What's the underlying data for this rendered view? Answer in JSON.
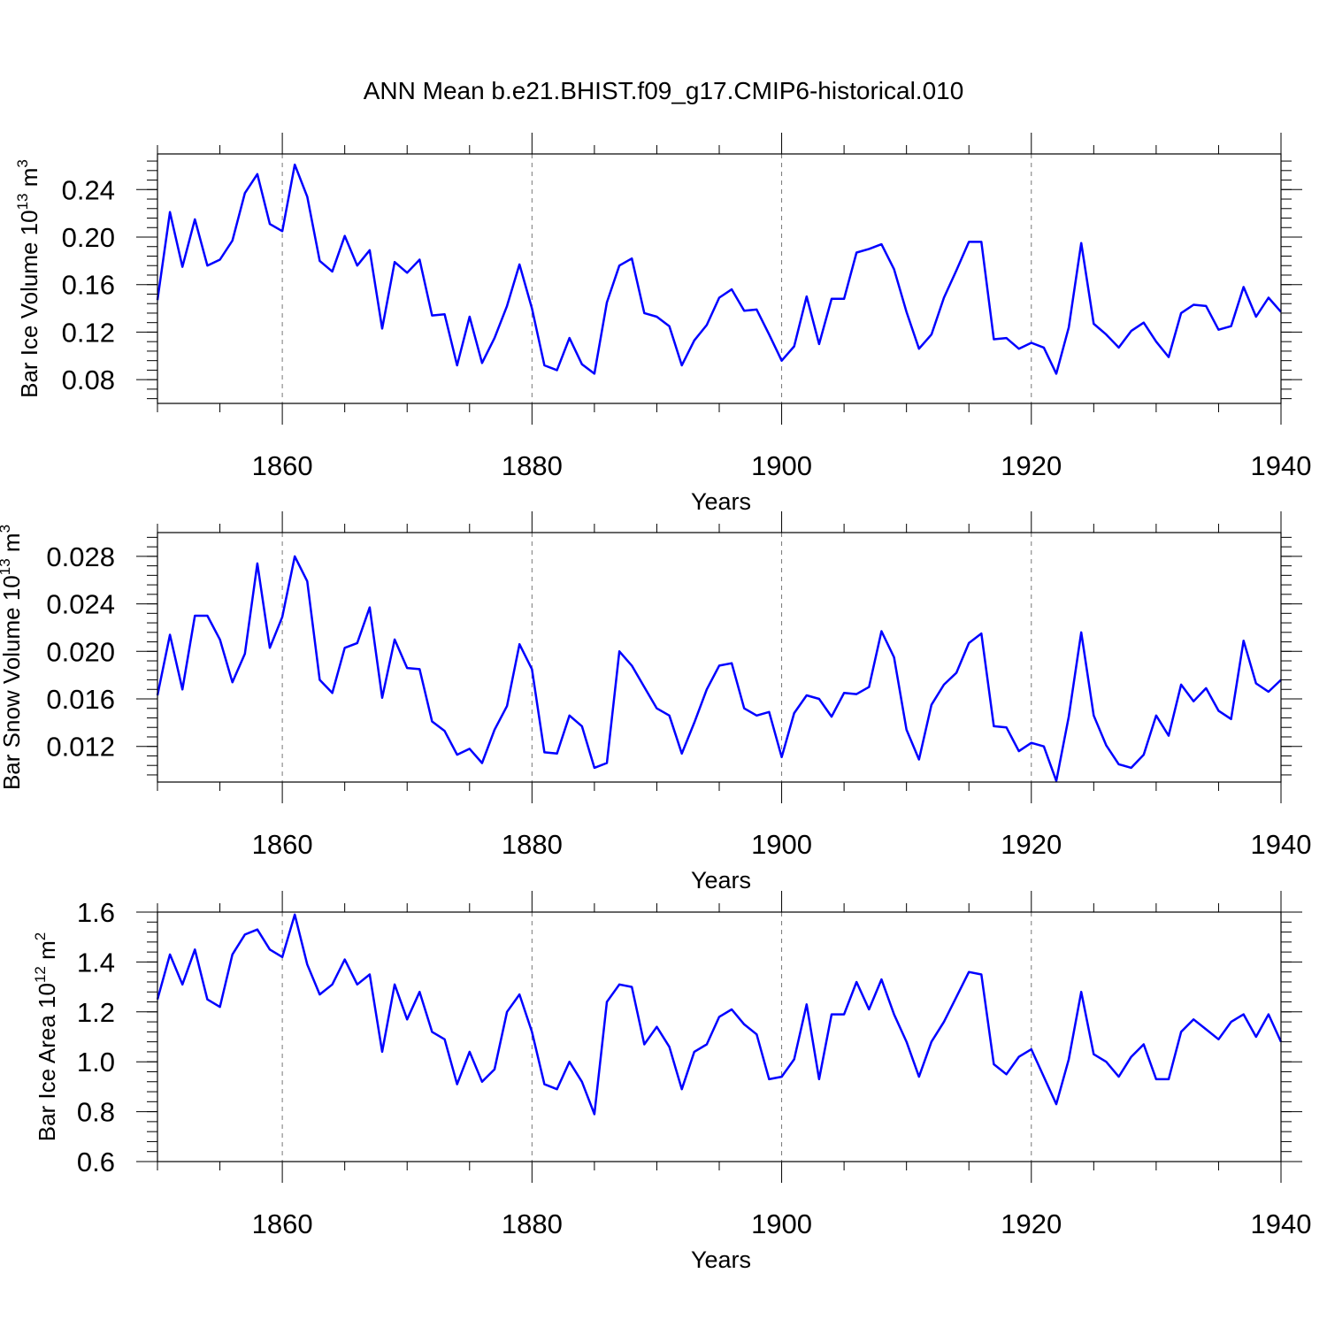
{
  "chart_data": {
    "title": "ANN Mean b.e21.BHIST.f09_g17.CMIP6-historical.010",
    "type": "line",
    "line_color": "#0000ff",
    "x_start": 1850,
    "panels": [
      {
        "id": "ice-volume",
        "ylabel": {
          "base": "Bar Ice Volume 10",
          "exp": "13",
          "unit": " m",
          "unit_exp": "3"
        },
        "xlabel": "Years",
        "xlim": [
          1850,
          1940
        ],
        "x_ticks": [
          "1860",
          "1880",
          "1900",
          "1920",
          "1940"
        ],
        "ylim": [
          0.06,
          0.27
        ],
        "y_ticks": [
          "0.08",
          "0.12",
          "0.16",
          "0.20",
          "0.24"
        ],
        "y_tick_values": [
          0.08,
          0.12,
          0.16,
          0.2,
          0.24
        ],
        "values": [
          0.147,
          0.221,
          0.175,
          0.215,
          0.176,
          0.181,
          0.197,
          0.237,
          0.253,
          0.211,
          0.205,
          0.261,
          0.234,
          0.18,
          0.171,
          0.201,
          0.176,
          0.189,
          0.123,
          0.179,
          0.17,
          0.181,
          0.134,
          0.135,
          0.092,
          0.133,
          0.094,
          0.115,
          0.142,
          0.177,
          0.14,
          0.092,
          0.088,
          0.115,
          0.093,
          0.085,
          0.145,
          0.176,
          0.182,
          0.136,
          0.133,
          0.125,
          0.092,
          0.113,
          0.126,
          0.149,
          0.156,
          0.138,
          0.139,
          0.118,
          0.096,
          0.108,
          0.15,
          0.11,
          0.148,
          0.148,
          0.187,
          0.19,
          0.194,
          0.173,
          0.137,
          0.106,
          0.118,
          0.149,
          0.172,
          0.196,
          0.196,
          0.114,
          0.115,
          0.106,
          0.111,
          0.107,
          0.085,
          0.124,
          0.195,
          0.127,
          0.118,
          0.107,
          0.121,
          0.128,
          0.112,
          0.099,
          0.136,
          0.143,
          0.142,
          0.122,
          0.125,
          0.158,
          0.133,
          0.149,
          0.137
        ]
      },
      {
        "id": "snow-volume",
        "ylabel": {
          "base": "Bar Snow Volume 10",
          "exp": "13",
          "unit": " m",
          "unit_exp": "3"
        },
        "xlabel": "Years",
        "xlim": [
          1850,
          1940
        ],
        "x_ticks": [
          "1860",
          "1880",
          "1900",
          "1920",
          "1940"
        ],
        "ylim": [
          0.009,
          0.03
        ],
        "y_ticks": [
          "0.012",
          "0.016",
          "0.020",
          "0.024",
          "0.028"
        ],
        "y_tick_values": [
          0.012,
          0.016,
          0.02,
          0.024,
          0.028
        ],
        "values": [
          0.0163,
          0.0214,
          0.0168,
          0.023,
          0.023,
          0.021,
          0.0174,
          0.0198,
          0.0274,
          0.0203,
          0.0229,
          0.028,
          0.0259,
          0.0176,
          0.0165,
          0.0203,
          0.0207,
          0.0237,
          0.0161,
          0.021,
          0.0186,
          0.0185,
          0.0141,
          0.0133,
          0.0113,
          0.0118,
          0.0106,
          0.0134,
          0.0154,
          0.0206,
          0.0185,
          0.0115,
          0.0114,
          0.0146,
          0.0137,
          0.0102,
          0.0106,
          0.02,
          0.0188,
          0.017,
          0.0152,
          0.0146,
          0.0114,
          0.014,
          0.0168,
          0.0188,
          0.019,
          0.0152,
          0.0146,
          0.0149,
          0.0111,
          0.0148,
          0.0163,
          0.016,
          0.0145,
          0.0165,
          0.0164,
          0.017,
          0.0217,
          0.0195,
          0.0134,
          0.0109,
          0.0155,
          0.0172,
          0.0182,
          0.0207,
          0.0215,
          0.0137,
          0.0136,
          0.0116,
          0.0123,
          0.012,
          0.0091,
          0.0145,
          0.0216,
          0.0146,
          0.0121,
          0.0105,
          0.0102,
          0.0113,
          0.0146,
          0.0129,
          0.0172,
          0.0158,
          0.0169,
          0.015,
          0.0143,
          0.0209,
          0.0173,
          0.0166,
          0.0176
        ]
      },
      {
        "id": "ice-area",
        "ylabel": {
          "base": "Bar Ice Area 10",
          "exp": "12",
          "unit": " m",
          "unit_exp": "2"
        },
        "xlabel": "Years",
        "xlim": [
          1850,
          1940
        ],
        "x_ticks": [
          "1860",
          "1880",
          "1900",
          "1920",
          "1940"
        ],
        "ylim": [
          0.6,
          1.6
        ],
        "y_ticks": [
          "0.6",
          "0.8",
          "1.0",
          "1.2",
          "1.4",
          "1.6"
        ],
        "y_tick_values": [
          0.6,
          0.8,
          1.0,
          1.2,
          1.4,
          1.6
        ],
        "values": [
          1.25,
          1.43,
          1.31,
          1.45,
          1.25,
          1.22,
          1.43,
          1.51,
          1.53,
          1.45,
          1.42,
          1.59,
          1.39,
          1.27,
          1.31,
          1.41,
          1.31,
          1.35,
          1.04,
          1.31,
          1.17,
          1.28,
          1.12,
          1.09,
          0.91,
          1.04,
          0.92,
          0.97,
          1.2,
          1.27,
          1.12,
          0.91,
          0.89,
          1.0,
          0.92,
          0.79,
          1.24,
          1.31,
          1.3,
          1.07,
          1.14,
          1.06,
          0.89,
          1.04,
          1.07,
          1.18,
          1.21,
          1.15,
          1.11,
          0.93,
          0.94,
          1.01,
          1.23,
          0.93,
          1.19,
          1.19,
          1.32,
          1.21,
          1.33,
          1.19,
          1.08,
          0.94,
          1.08,
          1.16,
          1.26,
          1.36,
          1.35,
          0.99,
          0.95,
          1.02,
          1.05,
          0.94,
          0.83,
          1.01,
          1.28,
          1.03,
          1.0,
          0.94,
          1.02,
          1.07,
          0.93,
          0.93,
          1.12,
          1.17,
          1.13,
          1.09,
          1.16,
          1.19,
          1.1,
          1.19,
          1.08
        ]
      }
    ]
  }
}
